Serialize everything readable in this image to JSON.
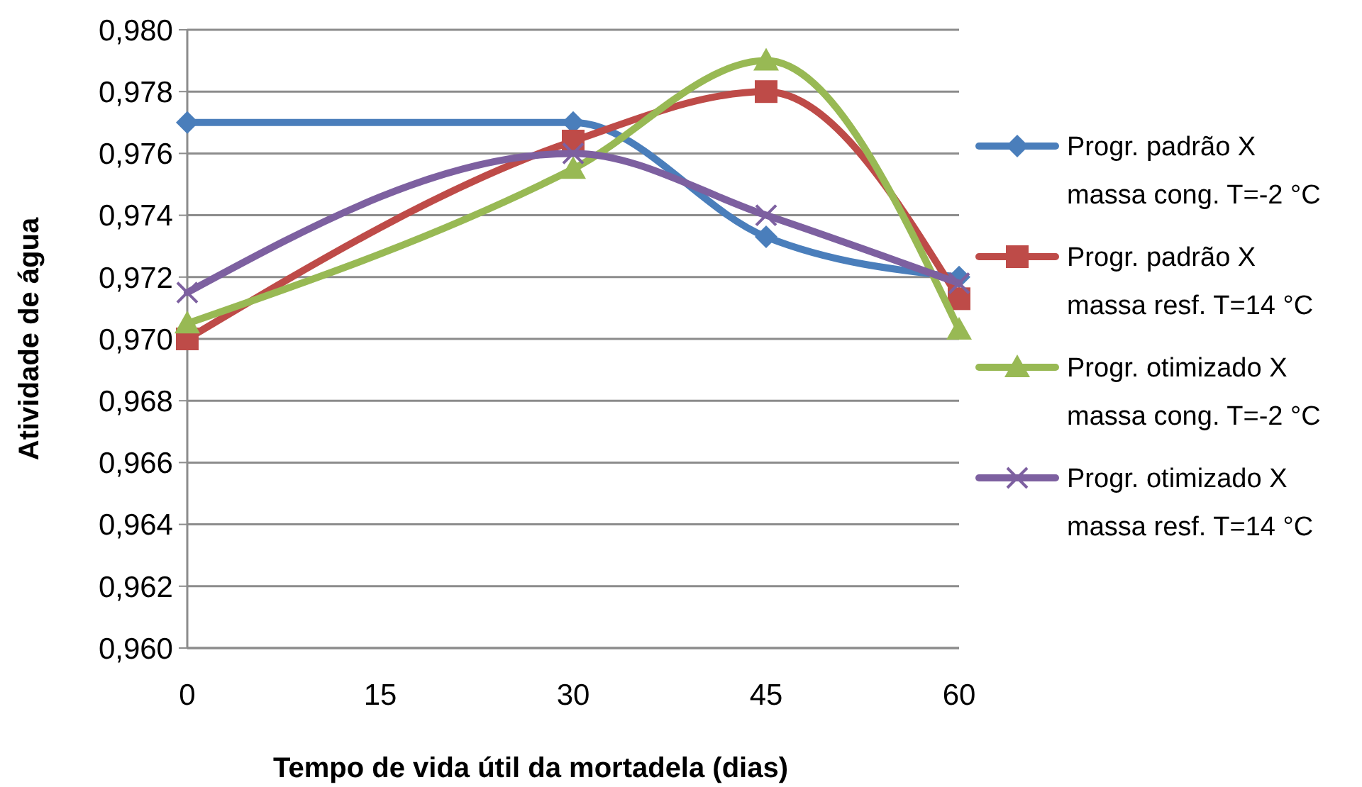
{
  "chart_data": {
    "type": "line",
    "xlabel": "Tempo de vida útil da mortadela (dias)",
    "ylabel": "Atividade de água",
    "x": [
      0,
      30,
      45,
      60
    ],
    "xlim": [
      0,
      60
    ],
    "xticks": [
      0,
      15,
      30,
      45,
      60
    ],
    "ylim": [
      0.96,
      0.98
    ],
    "yticks": [
      {
        "value": 0.96,
        "label": "0,960"
      },
      {
        "value": 0.962,
        "label": "0,962"
      },
      {
        "value": 0.964,
        "label": "0,964"
      },
      {
        "value": 0.966,
        "label": "0,966"
      },
      {
        "value": 0.968,
        "label": "0,968"
      },
      {
        "value": 0.97,
        "label": "0,970"
      },
      {
        "value": 0.972,
        "label": "0,972"
      },
      {
        "value": 0.974,
        "label": "0,974"
      },
      {
        "value": 0.976,
        "label": "0,976"
      },
      {
        "value": 0.978,
        "label": "0,978"
      },
      {
        "value": 0.98,
        "label": "0,980"
      }
    ],
    "grid": "y",
    "legend": "right",
    "line_style": "solid",
    "series": [
      {
        "name": "Progr. padrão X massa cong. T=-2 °C",
        "color": "#4a7ebb",
        "marker": "diamond",
        "values": [
          0.977,
          0.977,
          0.9733,
          0.972
        ]
      },
      {
        "name": "Progr. padrão X massa resf. T=14 °C",
        "color": "#be4b48",
        "marker": "square",
        "values": [
          0.97,
          0.9764,
          0.978,
          0.9713
        ]
      },
      {
        "name": "Progr. otimizado X massa cong. T=-2 °C",
        "color": "#98b954",
        "marker": "triangle",
        "values": [
          0.9705,
          0.9755,
          0.979,
          0.9703
        ]
      },
      {
        "name": "Progr. otimizado X massa resf. T=14 °C",
        "color": "#7d60a0",
        "marker": "cross",
        "values": [
          0.9715,
          0.976,
          0.974,
          0.9718
        ]
      }
    ]
  }
}
